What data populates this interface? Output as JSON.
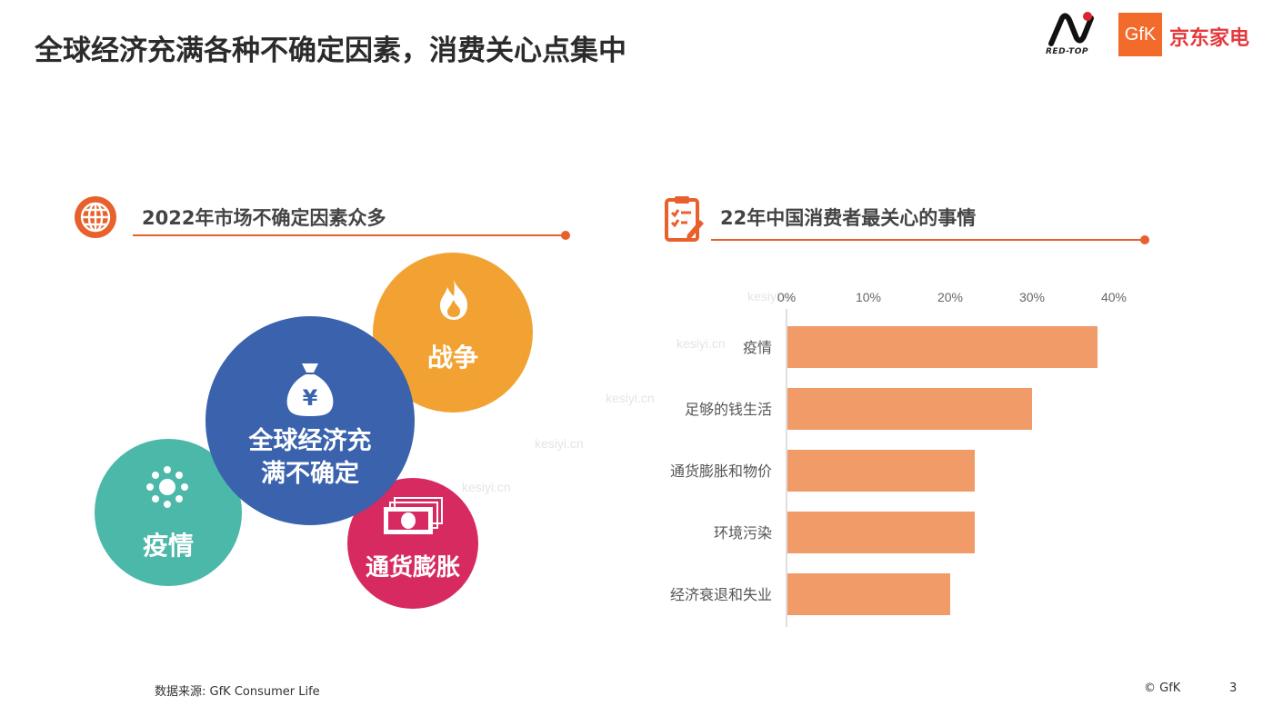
{
  "title": "全球经济充满各种不确定因素，消费关心点集中",
  "logos": {
    "redtop": "RED-TOP",
    "gfk": "GfK",
    "jd": "京东家电"
  },
  "left_section": {
    "heading": "2022年市场不确定因素众多",
    "icon": "globe-icon",
    "bubbles": [
      {
        "label": "战争",
        "icon": "flame-icon",
        "color": "#f2a232"
      },
      {
        "label_line1": "全球经济充",
        "label_line2": "满不确定",
        "icon": "money-bag-icon",
        "color": "#3a62ad"
      },
      {
        "label": "疫情",
        "icon": "virus-icon",
        "color": "#4bb8a9"
      },
      {
        "label": "通货膨胀",
        "icon": "banknotes-icon",
        "color": "#d62a60"
      }
    ]
  },
  "right_section": {
    "heading": "22年中国消费者最关心的事情",
    "icon": "clipboard-icon"
  },
  "chart_data": {
    "type": "bar",
    "orientation": "horizontal",
    "categories": [
      "疫情",
      "足够的钱生活",
      "通货膨胀和物价",
      "环境污染",
      "经济衰退和失业"
    ],
    "values": [
      38,
      30,
      23,
      23,
      20
    ],
    "x_ticks": [
      "0%",
      "10%",
      "20%",
      "30%",
      "40%"
    ],
    "xlim": [
      0,
      40
    ],
    "xaxis_position": "top",
    "grid": false,
    "bar_color": "#f19b68",
    "unit": "%"
  },
  "watermark": "kesiyi.cn",
  "footer": {
    "source": "数据来源: GfK Consumer Life",
    "copyright": "© GfK",
    "page": "3"
  }
}
